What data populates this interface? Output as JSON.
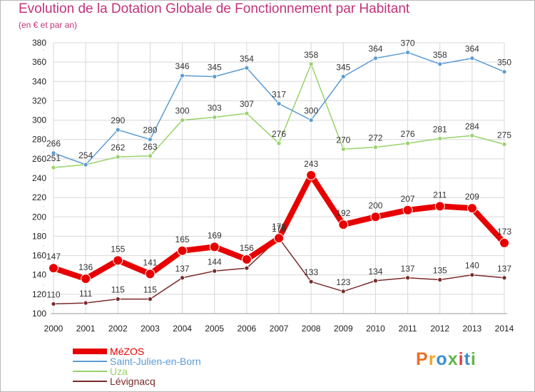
{
  "title": "Evolution de la Dotation Globale de Fonctionnement par Habitant",
  "subtitle": "(en € et par an)",
  "logo": {
    "text": "Proxiti",
    "colors": [
      "#e8702a",
      "#f0a82b",
      "#3a8fd0",
      "#5fb84a",
      "#e04040",
      "#3a8fd0",
      "#5fb84a"
    ]
  },
  "colors": {
    "title": "#c1337a",
    "grid": "#d8d8d8"
  },
  "chart_data": {
    "type": "line",
    "title": "Evolution de la Dotation Globale de Fonctionnement par Habitant",
    "subtitle": "(en € et par an)",
    "xlabel": "",
    "ylabel": "",
    "x": [
      "2000",
      "2001",
      "2002",
      "2003",
      "2004",
      "2005",
      "2006",
      "2007",
      "2008",
      "2009",
      "2010",
      "2011",
      "2012",
      "2013",
      "2014"
    ],
    "ylim": [
      100,
      380
    ],
    "yticks": [
      100,
      120,
      140,
      160,
      180,
      200,
      220,
      240,
      260,
      280,
      300,
      320,
      340,
      360,
      380
    ],
    "grid": true,
    "legend": "bottom-left",
    "series": [
      {
        "name": "Lévignacq",
        "color": "#7a2a2a",
        "values": [
          110,
          111,
          115,
          115,
          137,
          144,
          147,
          178,
          133,
          123,
          134,
          137,
          135,
          140,
          137
        ]
      },
      {
        "name": "Uza",
        "color": "#98d36a",
        "values": [
          251,
          254,
          262,
          263,
          300,
          303,
          307,
          276,
          358,
          270,
          272,
          276,
          281,
          284,
          275
        ]
      },
      {
        "name": "Saint-Julien-en-Born",
        "color": "#5b9bd5",
        "values": [
          266,
          254,
          290,
          280,
          346,
          345,
          354,
          317,
          300,
          345,
          364,
          370,
          358,
          364,
          350
        ]
      },
      {
        "name": "MéZOS",
        "color": "#e80000",
        "values": [
          147,
          136,
          155,
          141,
          165,
          169,
          156,
          178,
          243,
          192,
          200,
          207,
          211,
          209,
          173
        ]
      }
    ],
    "labels": [
      {
        "series": "Lévignacq",
        "values": [
          "110",
          "111",
          "115",
          "115",
          "137",
          "144",
          "",
          "178",
          "133",
          "123",
          "134",
          "137",
          "135",
          "140",
          "137"
        ]
      },
      {
        "series": "Uza",
        "values": [
          "251",
          "",
          "262",
          "263",
          "300",
          "303",
          "307",
          "276",
          "358",
          "270",
          "272",
          "276",
          "281",
          "284",
          "275"
        ]
      },
      {
        "series": "Saint-Julien-en-Born",
        "values": [
          "266",
          "254",
          "290",
          "280",
          "346",
          "345",
          "354",
          "317",
          "300",
          "345",
          "364",
          "370",
          "358",
          "364",
          "350"
        ]
      },
      {
        "series": "MéZOS",
        "values": [
          "147",
          "136",
          "155",
          "141",
          "165",
          "169",
          "156",
          "178",
          "243",
          "192",
          "200",
          "207",
          "211",
          "209",
          "173"
        ]
      }
    ],
    "legend_order": [
      "MéZOS",
      "Saint-Julien-en-Born",
      "Uza",
      "Lévignacq"
    ]
  }
}
